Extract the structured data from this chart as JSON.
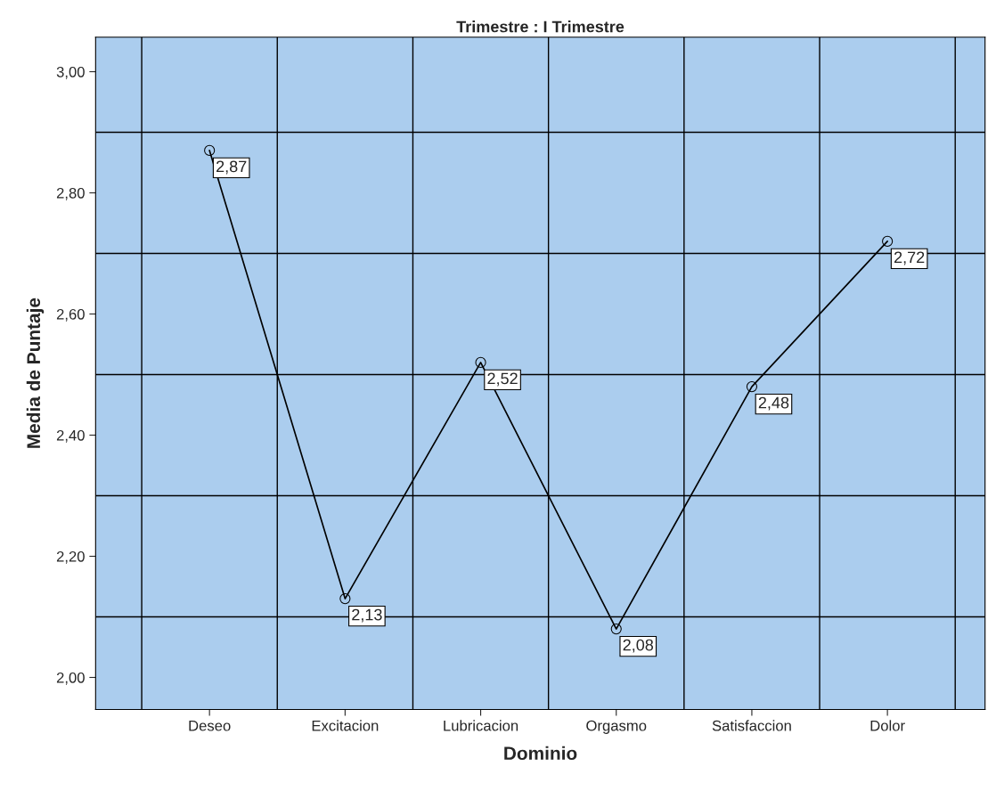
{
  "chart_data": {
    "type": "line",
    "title": "Trimestre : I Trimestre",
    "xlabel": "Dominio",
    "ylabel": "Media de Puntaje",
    "categories": [
      "Deseo",
      "Excitacion",
      "Lubricacion",
      "Orgasmo",
      "Satisfaccion",
      "Dolor"
    ],
    "series": [
      {
        "color": "#000000",
        "values": [
          2.87,
          2.13,
          2.52,
          2.08,
          2.48,
          2.72
        ]
      }
    ],
    "value_labels": [
      "2,87",
      "2,13",
      "2,52",
      "2,08",
      "2,48",
      "2,72"
    ],
    "ylim": [
      1.947,
      3.057
    ],
    "yticks": [
      {
        "value": 2.0,
        "label": "2,00"
      },
      {
        "value": 2.2,
        "label": "2,20"
      },
      {
        "value": 2.4,
        "label": "2,40"
      },
      {
        "value": 2.6,
        "label": "2,60"
      },
      {
        "value": 2.8,
        "label": "2,80"
      },
      {
        "value": 3.0,
        "label": "3,00"
      }
    ],
    "grid": true,
    "marker": "circle",
    "line_style": "solid",
    "legend": false
  }
}
